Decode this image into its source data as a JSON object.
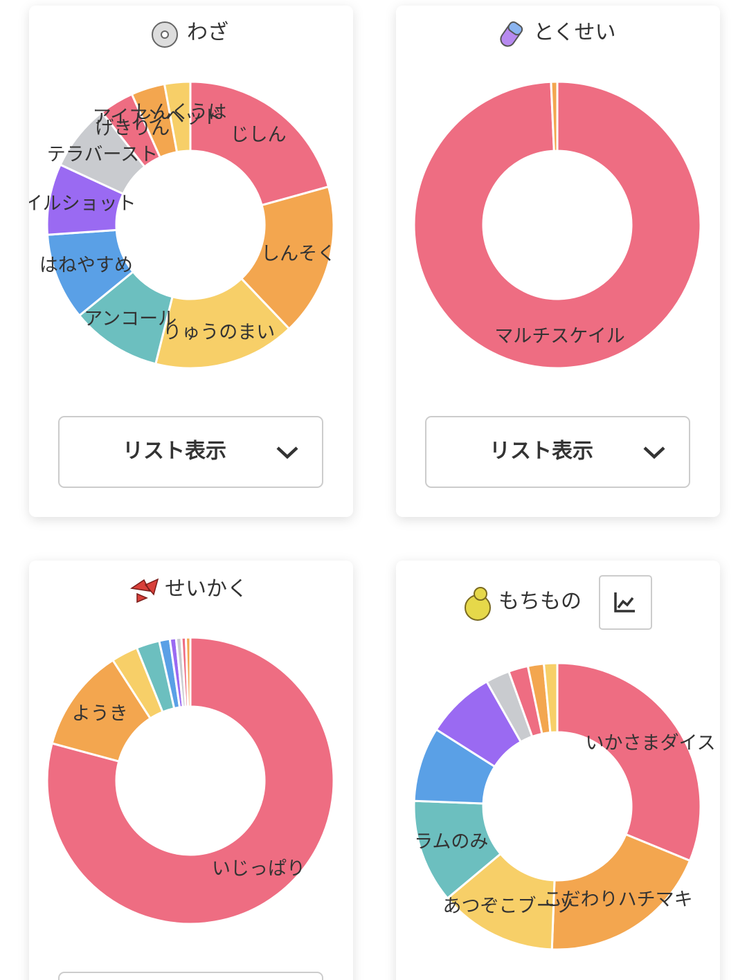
{
  "chart_data": [
    {
      "type": "donut",
      "title": "わざ",
      "button_label": "リスト表示",
      "categories": [
        "じしん",
        "しんそく",
        "りゅうのまい",
        "アンコール",
        "はねやすめ",
        "イルショット",
        "テラバースト",
        "げきりん",
        "アイアンヘッド",
        "しんくうは"
      ],
      "values": [
        20.7,
        17.2,
        16,
        10.2,
        9.8,
        8,
        7.5,
        3.9,
        3.8,
        2.9
      ],
      "colors": [
        "#ee6d82",
        "#f3a64f",
        "#f7cf68",
        "#6cbfbf",
        "#5aa0e6",
        "#9a6af2",
        "#c9cbcf",
        "#ee6d82",
        "#f3a64f",
        "#f7cf68"
      ]
    },
    {
      "type": "donut",
      "title": "とくせい",
      "button_label": "リスト表示",
      "categories": [
        "マルチスケイル",
        null
      ],
      "values": [
        99.3,
        0.7
      ],
      "colors": [
        "#ee6d82",
        "#f3a64f"
      ]
    },
    {
      "type": "donut",
      "title": "せいかく",
      "categories": [
        "いじっぱり",
        "ようき",
        null,
        null,
        null,
        null,
        null,
        null,
        null
      ],
      "values": [
        79.2,
        11.7,
        3,
        2.6,
        1.2,
        0.7,
        0.6,
        0.5,
        0.5
      ],
      "colors": [
        "#ee6d82",
        "#f3a64f",
        "#f7cf68",
        "#6cbfbf",
        "#5aa0e6",
        "#9a6af2",
        "#c9cbcf",
        "#ee6d82",
        "#f3a64f"
      ]
    },
    {
      "type": "donut",
      "title": "もちもの",
      "categories": [
        "いかさまダイス",
        "こだわりハチマキ",
        "あつぞこブーツ",
        "ラムのみ",
        null,
        null,
        null,
        null,
        null,
        null
      ],
      "values": [
        31.2,
        19.4,
        13.3,
        11.7,
        8.4,
        7.8,
        2.7,
        2.2,
        1.8,
        1.5
      ],
      "colors": [
        "#ee6d82",
        "#f3a64f",
        "#f7cf68",
        "#6cbfbf",
        "#5aa0e6",
        "#9a6af2",
        "#c9cbcf",
        "#ee6d82",
        "#f3a64f",
        "#f7cf68"
      ]
    }
  ]
}
